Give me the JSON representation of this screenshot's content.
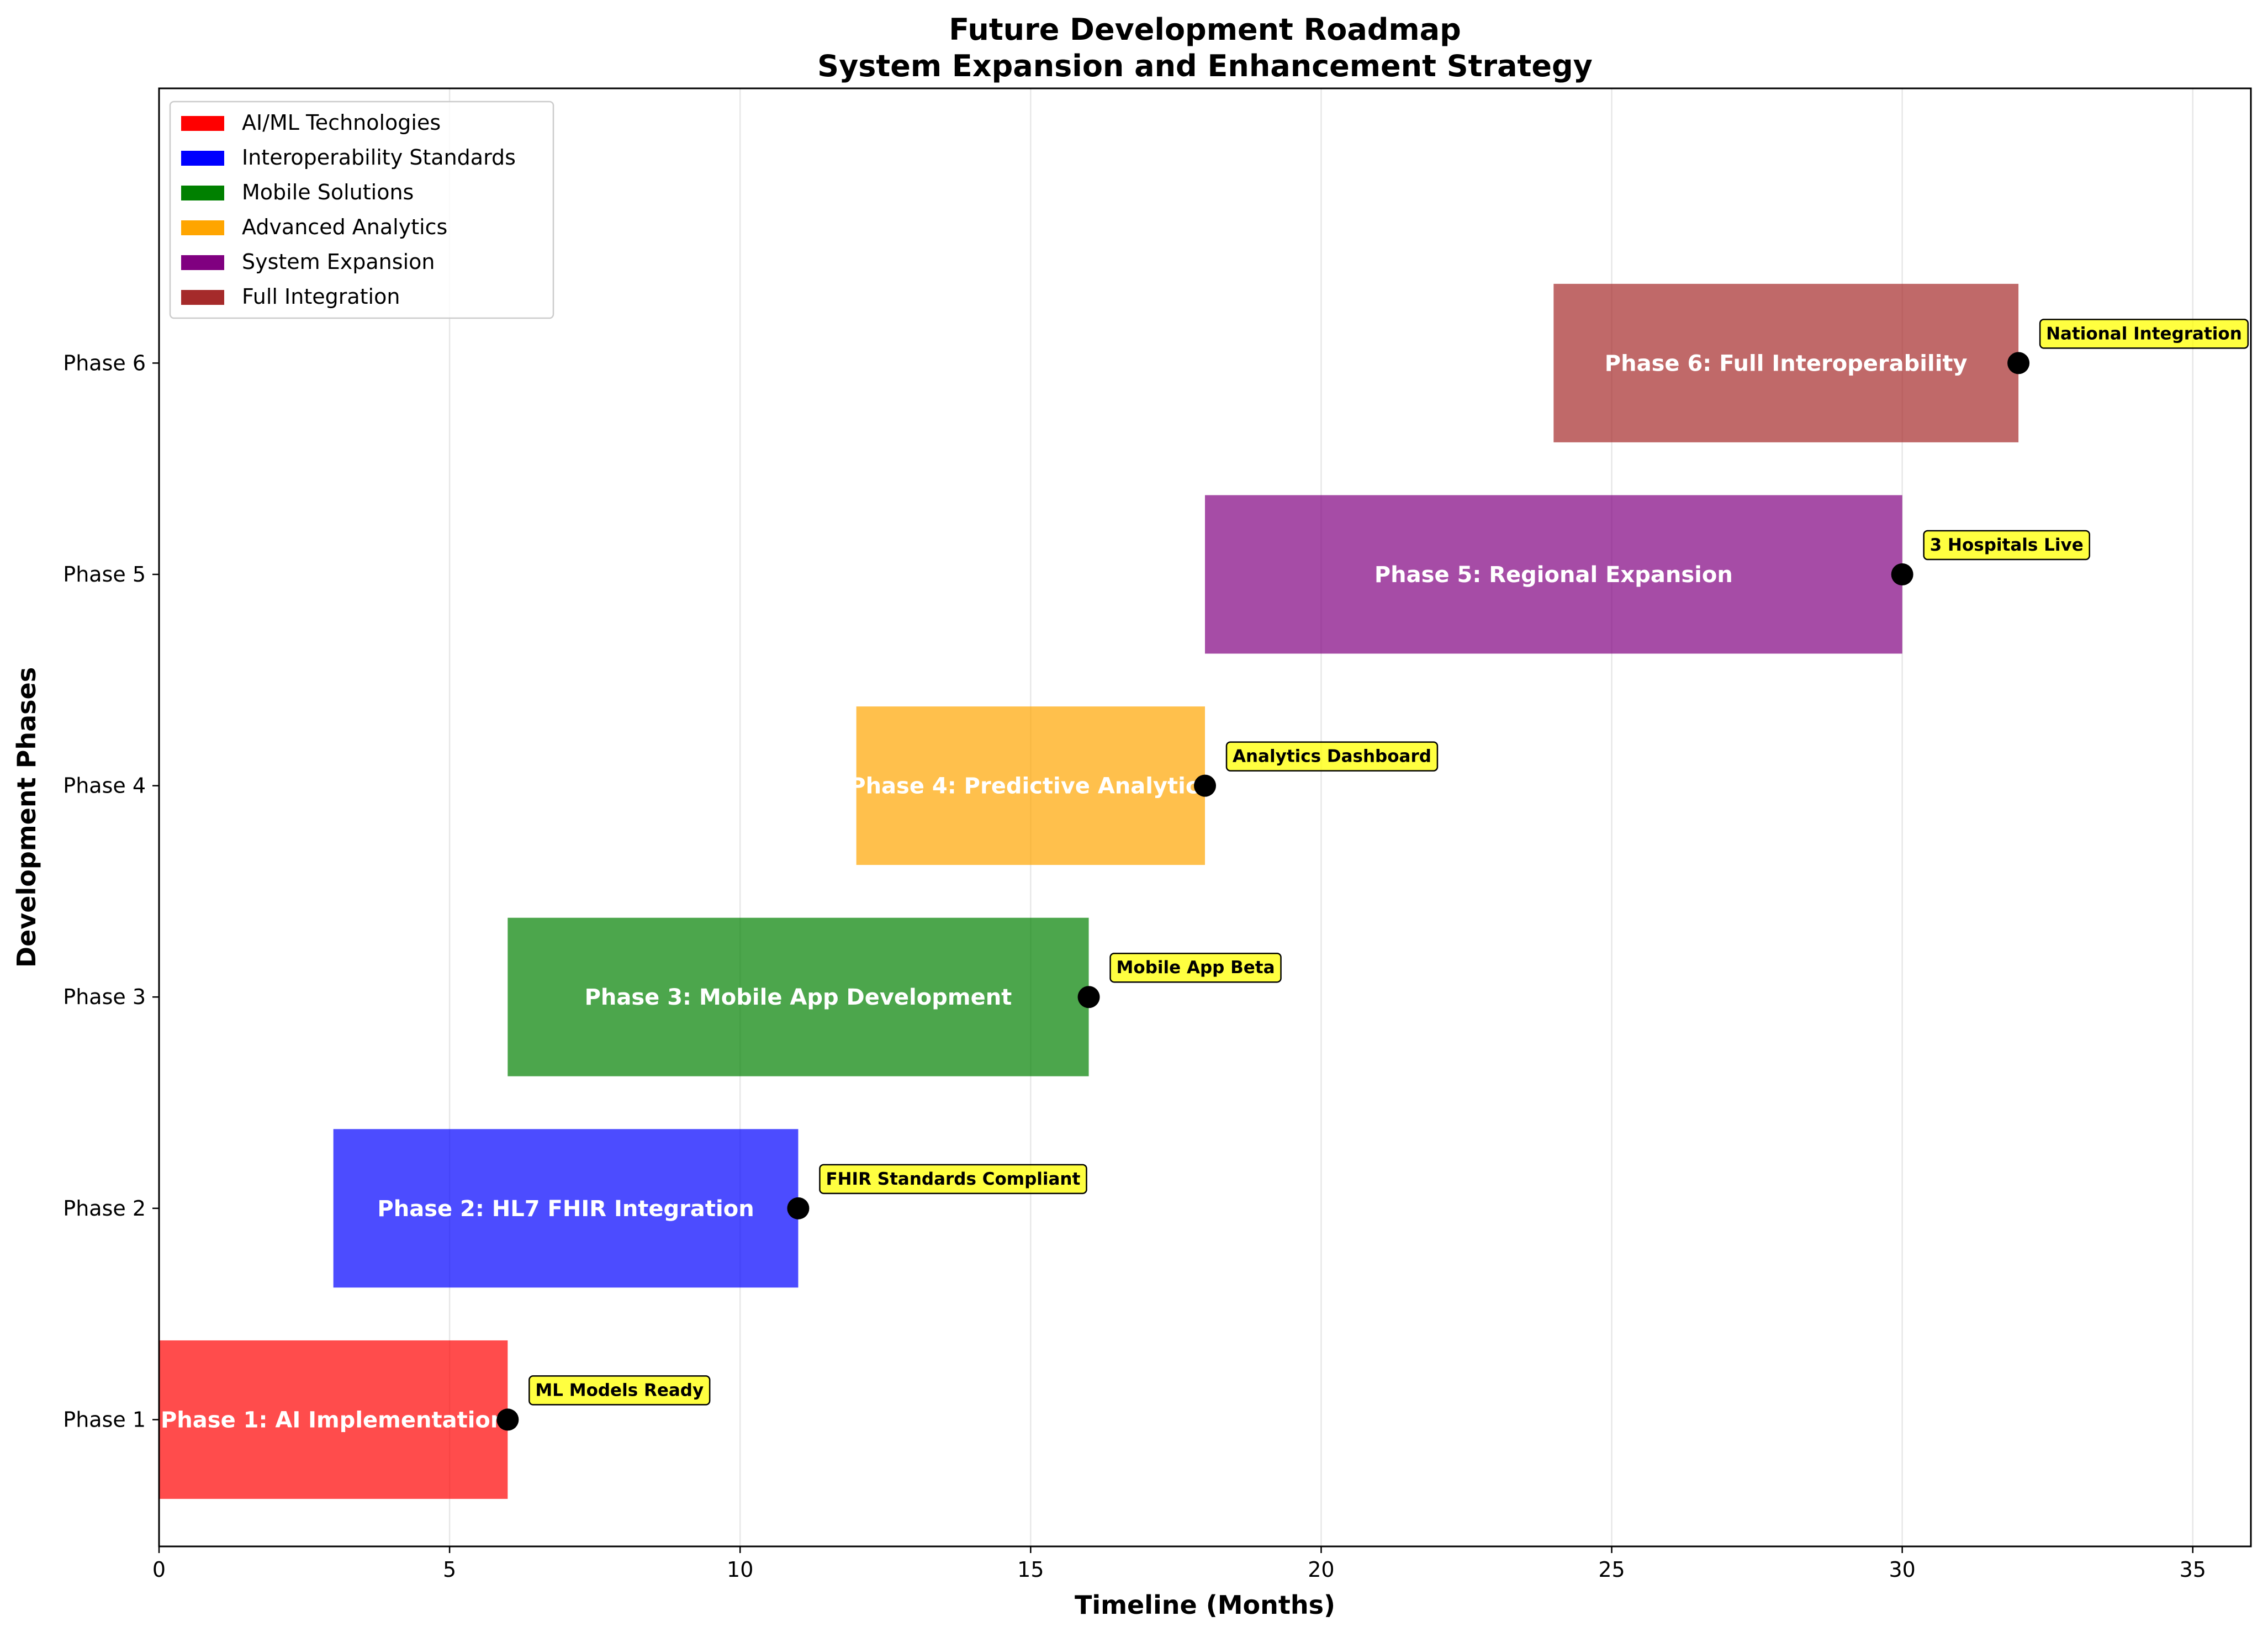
{
  "chart_data": {
    "type": "gantt",
    "title": "Future Development Roadmap",
    "subtitle": "System Expansion and Enhancement Strategy",
    "xlabel": "Timeline (Months)",
    "ylabel": "Development Phases",
    "xlim": [
      0,
      36
    ],
    "xticks": [
      0,
      5,
      10,
      15,
      20,
      25,
      30,
      35
    ],
    "ylim": [
      0.4,
      7.3
    ],
    "grid": "vertical",
    "legend_position": "top-left",
    "categories": [
      "Phase 1",
      "Phase 2",
      "Phase 3",
      "Phase 4",
      "Phase 5",
      "Phase 6"
    ],
    "legend": [
      {
        "label": "AI/ML Technologies",
        "color": "#ff0000"
      },
      {
        "label": "Interoperability Standards",
        "color": "#0000ff"
      },
      {
        "label": "Mobile Solutions",
        "color": "#008000"
      },
      {
        "label": "Advanced Analytics",
        "color": "#ffa500"
      },
      {
        "label": "System Expansion",
        "color": "#800080"
      },
      {
        "label": "Full Integration",
        "color": "#a52a2a"
      }
    ],
    "tasks": [
      {
        "phase": 1,
        "label": "Phase 1: AI Implementation",
        "start": 0,
        "end": 6,
        "color": "#ff0000",
        "milestone": "ML Models Ready"
      },
      {
        "phase": 2,
        "label": "Phase 2: HL7 FHIR Integration",
        "start": 3,
        "end": 11,
        "color": "#0000ff",
        "milestone": "FHIR Standards Compliant"
      },
      {
        "phase": 3,
        "label": "Phase 3: Mobile App Development",
        "start": 6,
        "end": 16,
        "color": "#008000",
        "milestone": "Mobile App Beta"
      },
      {
        "phase": 4,
        "label": "Phase 4: Predictive Analytics",
        "start": 12,
        "end": 18,
        "color": "#ffa500",
        "milestone": "Analytics Dashboard"
      },
      {
        "phase": 5,
        "label": "Phase 5: Regional Expansion",
        "start": 18,
        "end": 30,
        "color": "#800080",
        "milestone": "3 Hospitals Live"
      },
      {
        "phase": 6,
        "label": "Phase 6: Full Interoperability",
        "start": 24,
        "end": 32,
        "color": "#a52a2a",
        "milestone": "National Integration"
      }
    ]
  }
}
